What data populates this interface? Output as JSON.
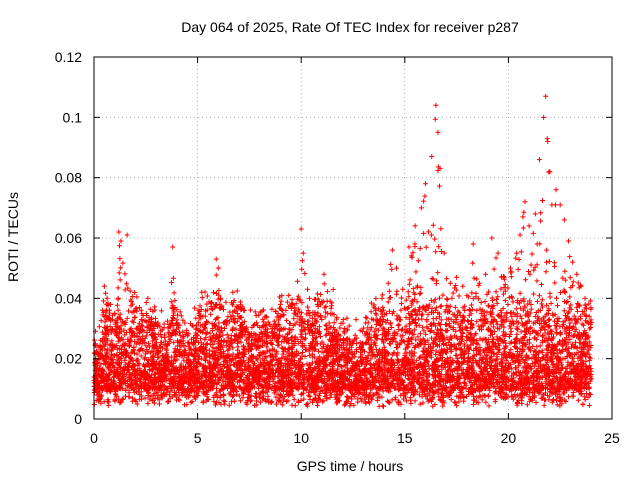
{
  "chart_data": {
    "type": "scatter",
    "title": "Day 064 of 2025, Rate Of TEC Index for receiver p287",
    "xlabel": "GPS time / hours",
    "ylabel": "ROTI / TECUs",
    "xlim": [
      0,
      25
    ],
    "ylim": [
      0,
      0.12
    ],
    "xticks": [
      0,
      5,
      10,
      15,
      20,
      25
    ],
    "xtick_labels": [
      "0",
      "5",
      "10",
      "15",
      "20",
      "25"
    ],
    "yticks": [
      0,
      0.02,
      0.04,
      0.06,
      0.08,
      0.1,
      0.12
    ],
    "ytick_labels": [
      "0",
      "0.02",
      "0.04",
      "0.06",
      "0.08",
      "0.1",
      "0.12"
    ],
    "grid": true,
    "marker": "+",
    "marker_color": "#ff0000",
    "series": [
      {
        "x": [
          0.1,
          0.3,
          0.5,
          0.8,
          1.0,
          1.2,
          1.3,
          1.6,
          1.8,
          2.0,
          2.3,
          2.6,
          2.9,
          3.2,
          3.6,
          3.8,
          4.0,
          4.4,
          4.8,
          5.2,
          5.5,
          5.9,
          6.0,
          6.3,
          6.7,
          7.0,
          7.3,
          7.7,
          8.0,
          8.3,
          8.7,
          9.0,
          9.4,
          9.7,
          10.0,
          10.1,
          10.4,
          10.8,
          11.1,
          11.4,
          11.8,
          12.1,
          12.5,
          12.9,
          13.2,
          13.6,
          13.9,
          14.2,
          14.4,
          14.6,
          14.9,
          15.2,
          15.5,
          15.8,
          16.0,
          16.3,
          16.5,
          16.6,
          16.7,
          16.9,
          17.2,
          17.5,
          17.8,
          18.0,
          18.3,
          18.6,
          18.9,
          19.2,
          19.5,
          19.8,
          20.1,
          20.4,
          20.7,
          20.8,
          21.0,
          21.3,
          21.5,
          21.7,
          21.8,
          21.9,
          22.0,
          22.1,
          22.3,
          22.5,
          22.7,
          22.9,
          23.1,
          23.3,
          23.5,
          23.7,
          23.9,
          24.0
        ],
        "y": [
          0.022,
          0.024,
          0.044,
          0.038,
          0.035,
          0.062,
          0.059,
          0.061,
          0.039,
          0.036,
          0.033,
          0.04,
          0.03,
          0.028,
          0.025,
          0.057,
          0.031,
          0.028,
          0.027,
          0.042,
          0.032,
          0.053,
          0.05,
          0.03,
          0.042,
          0.034,
          0.03,
          0.031,
          0.028,
          0.034,
          0.03,
          0.038,
          0.041,
          0.036,
          0.063,
          0.055,
          0.04,
          0.038,
          0.048,
          0.039,
          0.028,
          0.03,
          0.025,
          0.024,
          0.028,
          0.036,
          0.04,
          0.045,
          0.056,
          0.05,
          0.043,
          0.057,
          0.064,
          0.07,
          0.078,
          0.087,
          0.104,
          0.095,
          0.083,
          0.055,
          0.045,
          0.047,
          0.044,
          0.041,
          0.058,
          0.045,
          0.048,
          0.06,
          0.055,
          0.047,
          0.05,
          0.055,
          0.067,
          0.072,
          0.064,
          0.068,
          0.086,
          0.1,
          0.107,
          0.092,
          0.082,
          0.071,
          0.076,
          0.071,
          0.066,
          0.059,
          0.052,
          0.048,
          0.044,
          0.04,
          0.034,
          0.032
        ]
      }
    ]
  }
}
